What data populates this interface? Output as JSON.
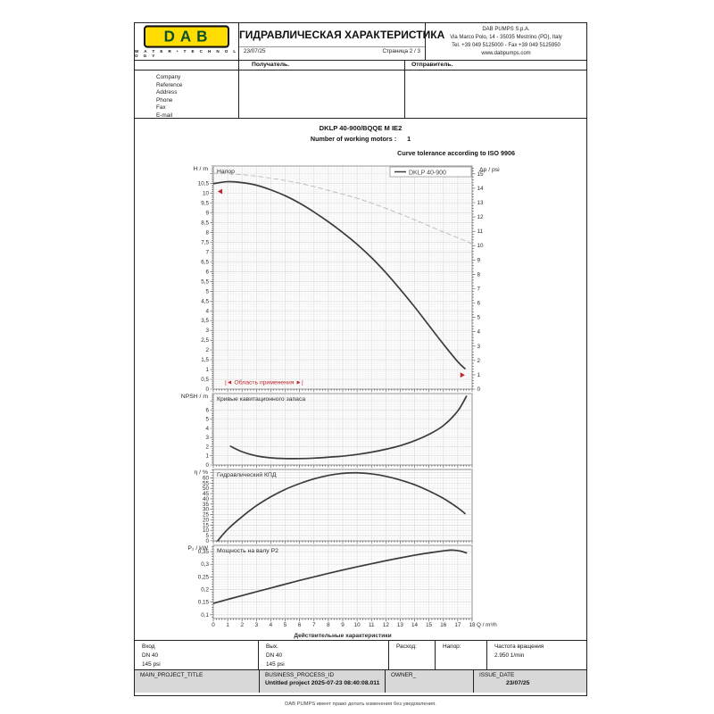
{
  "colors": {
    "accent_red": "#c0272d",
    "logo_yellow": "#ffdd00",
    "logo_green": "#0b4f28"
  },
  "header": {
    "logo_text": "DAB",
    "logo_subtext": "W A T E R • T E C H N O L O G Y",
    "title": "ГИДРАВЛИЧЕСКАЯ ХАРАКТЕРИСТИКА",
    "date": "23/07/25",
    "page": "Страница 2 / 3",
    "company_address": [
      "DAB PUMPS S.p.A.",
      "Via Marco Polo, 14 - 35035 Mestrino (PD), Italy",
      "Tel. +39 049 5125000 - Fax +39 049 5125950",
      "www.dabpumps.com"
    ],
    "recipient_label": "Получатель.",
    "sender_label": "Отправитель.",
    "contact_labels": [
      "Company",
      "Reference",
      "Address",
      "Phone",
      "Fax",
      "E-mail"
    ]
  },
  "pump": {
    "model": "DKLP 40-900/BQQE M IE2",
    "working_motors_label": "Number of working motors :",
    "working_motors_value": "1",
    "tolerance_note": "Curve tolerance according to ISO 9906"
  },
  "chart_data": {
    "type": "line",
    "x": {
      "label": "Q / m³/h",
      "min": 0,
      "max": 18,
      "major": 1,
      "minor": 0.2
    },
    "caption": "Действительные характеристики",
    "charts": [
      {
        "id": "head",
        "inner_label": "Напор",
        "y_label": "H / m",
        "ylim": [
          0,
          11.4
        ],
        "ymajor": 0.5,
        "yminor": 0.1,
        "ymaxtick": 10.5,
        "y2": {
          "label": "Δp / psi",
          "lim": [
            0,
            15.55
          ],
          "major": 1,
          "minor": 0.2
        },
        "legend": "DKLP 40-900",
        "range_label": "|◄ Область применения ►|",
        "series": [
          {
            "name": "head_m",
            "style": "solid",
            "axis": "y1",
            "points": [
              [
                0,
                10.5
              ],
              [
                1,
                10.6
              ],
              [
                2,
                10.55
              ],
              [
                3,
                10.42
              ],
              [
                4,
                10.18
              ],
              [
                5,
                9.88
              ],
              [
                6,
                9.5
              ],
              [
                7,
                9.05
              ],
              [
                8,
                8.55
              ],
              [
                9,
                8.0
              ],
              [
                10,
                7.4
              ],
              [
                11,
                6.72
              ],
              [
                12,
                5.95
              ],
              [
                13,
                5.1
              ],
              [
                14,
                4.2
              ],
              [
                15,
                3.25
              ],
              [
                16,
                2.3
              ],
              [
                17,
                1.4
              ],
              [
                17.5,
                1.05
              ]
            ]
          },
          {
            "name": "pressure_psi",
            "style": "dashed",
            "axis": "y2",
            "points": [
              [
                0,
                15.05
              ],
              [
                2,
                14.95
              ],
              [
                4,
                14.7
              ],
              [
                6,
                14.35
              ],
              [
                8,
                13.85
              ],
              [
                10,
                13.3
              ],
              [
                12,
                12.6
              ],
              [
                14,
                11.8
              ],
              [
                16,
                10.95
              ],
              [
                17.5,
                10.35
              ],
              [
                18,
                10.1
              ]
            ]
          }
        ],
        "markers": [
          {
            "dir": "left",
            "q": 0.3,
            "v": 10.1
          },
          {
            "dir": "right",
            "q": 17.5,
            "v": 0.72
          }
        ]
      },
      {
        "id": "npsh",
        "inner_label": "Кривые кавитационного запаса",
        "y_label": "NPSH / m",
        "ylim": [
          0,
          7.8
        ],
        "ymajor": 1,
        "yminor": 0.2,
        "ymaxtick": 6,
        "series": [
          {
            "name": "npsh_m",
            "style": "solid",
            "axis": "y1",
            "points": [
              [
                1.2,
                2.05
              ],
              [
                2,
                1.45
              ],
              [
                3,
                1.0
              ],
              [
                4,
                0.78
              ],
              [
                5,
                0.7
              ],
              [
                6,
                0.7
              ],
              [
                7,
                0.75
              ],
              [
                8,
                0.85
              ],
              [
                9,
                0.97
              ],
              [
                10,
                1.15
              ],
              [
                11,
                1.4
              ],
              [
                12,
                1.72
              ],
              [
                13,
                2.12
              ],
              [
                14,
                2.65
              ],
              [
                15,
                3.35
              ],
              [
                16,
                4.3
              ],
              [
                17,
                5.9
              ],
              [
                17.6,
                7.5
              ]
            ]
          }
        ]
      },
      {
        "id": "eta",
        "inner_label": "Гидравлический КПД",
        "y_label": "η / %",
        "ylim": [
          0,
          68
        ],
        "ymajor": 5,
        "yminor": 2.5,
        "ymaxtick": 60,
        "series": [
          {
            "name": "efficiency_pct",
            "style": "solid",
            "axis": "y1",
            "points": [
              [
                0.3,
                0
              ],
              [
                1,
                11
              ],
              [
                2,
                23
              ],
              [
                3,
                33.5
              ],
              [
                4,
                42
              ],
              [
                5,
                49
              ],
              [
                6,
                54.5
              ],
              [
                7,
                59
              ],
              [
                8,
                62.3
              ],
              [
                9,
                64.3
              ],
              [
                10,
                64.8
              ],
              [
                11,
                63.8
              ],
              [
                12,
                61.5
              ],
              [
                13,
                58
              ],
              [
                14,
                53.5
              ],
              [
                15,
                47.5
              ],
              [
                16,
                40.5
              ],
              [
                17,
                31.5
              ],
              [
                17.5,
                26
              ]
            ]
          }
        ]
      },
      {
        "id": "power",
        "inner_label": "Мощность на валу P2",
        "y_label": "P₂ / kW",
        "ylim": [
          0.085,
          0.375
        ],
        "ymajor": 0.05,
        "yminor": 0.01,
        "ymaxtick": 0.35,
        "series": [
          {
            "name": "shaft_power_kw",
            "style": "solid",
            "axis": "y1",
            "points": [
              [
                0,
                0.145
              ],
              [
                2,
                0.176
              ],
              [
                4,
                0.206
              ],
              [
                6,
                0.236
              ],
              [
                8,
                0.264
              ],
              [
                10,
                0.29
              ],
              [
                12,
                0.314
              ],
              [
                14,
                0.336
              ],
              [
                15,
                0.345
              ],
              [
                16,
                0.353
              ],
              [
                16.6,
                0.356
              ],
              [
                17.2,
                0.352
              ],
              [
                17.6,
                0.345
              ]
            ]
          }
        ]
      }
    ]
  },
  "connections": {
    "inlet_label": "Вход",
    "inlet_dn": "DN 40",
    "inlet_pressure": "145 psi",
    "outlet_label": "Вых.",
    "outlet_dn": "DN 40",
    "outlet_pressure": "145 psi",
    "flow_label": "Расход:",
    "head_label": "Напор:",
    "speed_label": "Частота вращения",
    "speed_value": "2.950 1/min"
  },
  "footer": {
    "project_title_label": "MAIN_PROJECT_TITLE",
    "process_id_label": "BUSINESS_PROCESS_ID",
    "process_id_value": "Untitled project 2025-07-23 08:40:08.011",
    "owner_label": "OWNER_",
    "issue_date_label": "ISSUE_DATE",
    "issue_date_value": "23/07/25",
    "disclaimer": "DAB PUMPS имеет право делать изменения без уведомления."
  }
}
